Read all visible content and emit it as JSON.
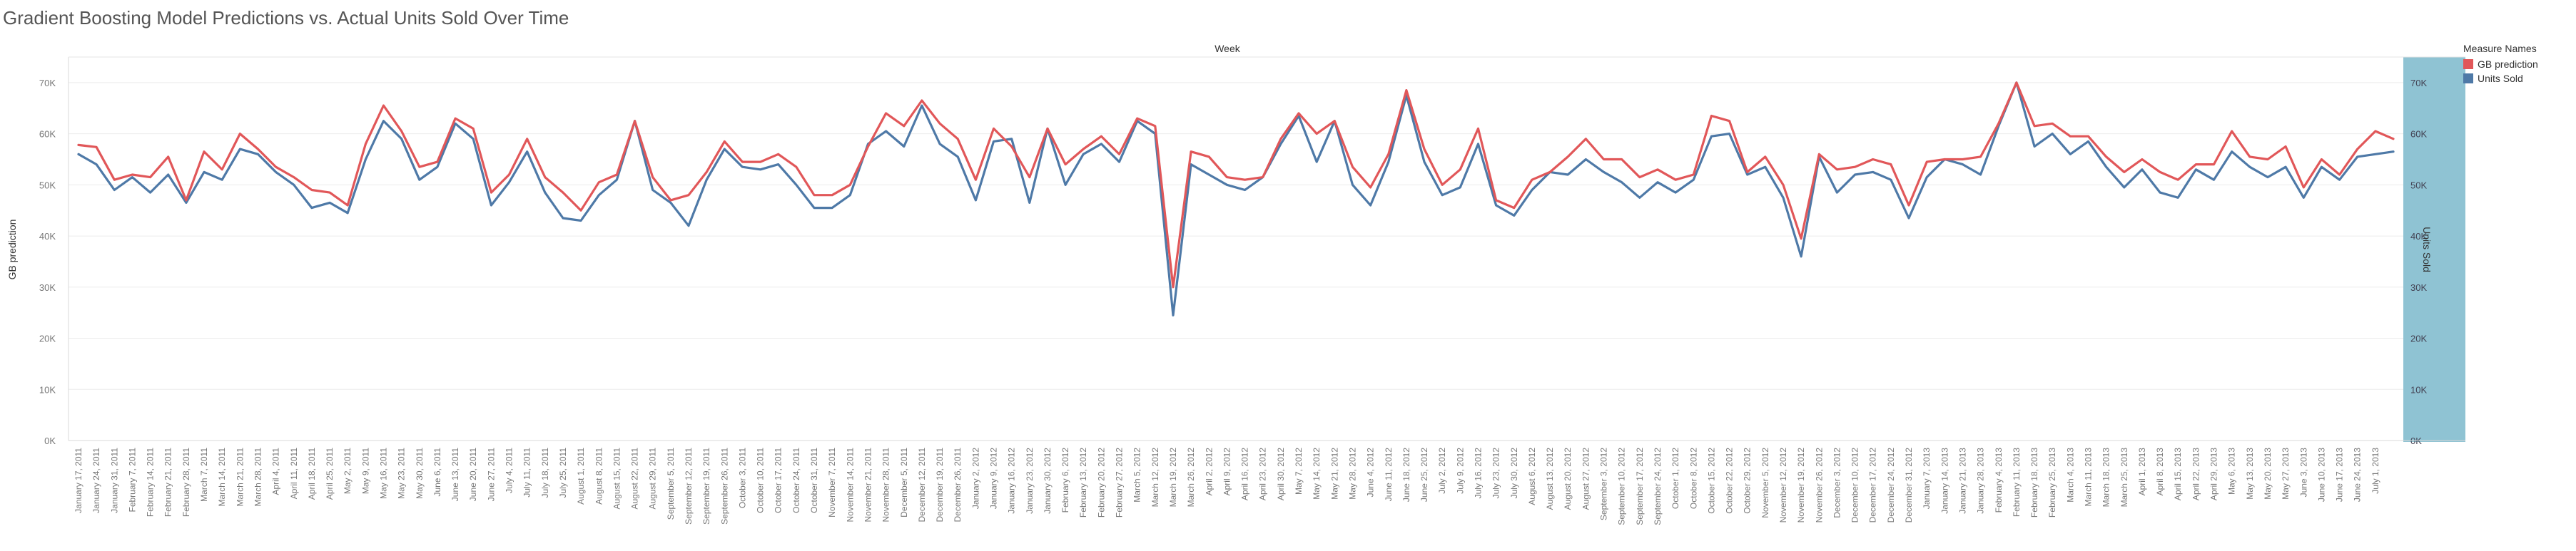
{
  "title": "Gradient Boosting Model Predictions vs. Actual Units Sold Over Time",
  "colors": {
    "prediction": "#e15759",
    "units": "#4e79a7",
    "right_band": "#8fc3d3",
    "grid": "#ececec",
    "axis_text": "#777777"
  },
  "legend": {
    "title": "Measure Names",
    "items": [
      {
        "label": "GB prediction",
        "color": "#e15759"
      },
      {
        "label": "Units Sold",
        "color": "#4e79a7"
      }
    ]
  },
  "chart_data": {
    "type": "line",
    "title": "Gradient Boosting Model Predictions vs. Actual Units Sold Over Time",
    "xlabel": "Week",
    "ylabel_left": "GB prediction",
    "ylabel_right": "Units Sold",
    "ylim": [
      0,
      75000
    ],
    "yticks": [
      0,
      10000,
      20000,
      30000,
      40000,
      50000,
      60000,
      70000
    ],
    "ytick_labels": [
      "0K",
      "10K",
      "20K",
      "30K",
      "40K",
      "50K",
      "60K",
      "70K"
    ],
    "grid": true,
    "legend_position": "top-right",
    "x_tick_labels": [
      "January 17, 2011",
      "January 24, 2011",
      "January 31, 2011",
      "February 7, 2011",
      "February 14, 2011",
      "February 21, 2011",
      "February 28, 2011",
      "March 7, 2011",
      "March 14, 2011",
      "March 21, 2011",
      "March 28, 2011",
      "April 4, 2011",
      "April 11, 2011",
      "April 18, 2011",
      "April 25, 2011",
      "May 2, 2011",
      "May 9, 2011",
      "May 16, 2011",
      "May 23, 2011",
      "May 30, 2011",
      "June 6, 2011",
      "June 13, 2011",
      "June 20, 2011",
      "June 27, 2011",
      "July 4, 2011",
      "July 11, 2011",
      "July 18, 2011",
      "July 25, 2011",
      "August 1, 2011",
      "August 8, 2011",
      "August 15, 2011",
      "August 22, 2011",
      "August 29, 2011",
      "September 5, 2011",
      "September 12, 2011",
      "September 19, 2011",
      "September 26, 2011",
      "October 3, 2011",
      "October 10, 2011",
      "October 17, 2011",
      "October 24, 2011",
      "October 31, 2011",
      "November 7, 2011",
      "November 14, 2011",
      "November 21, 2011",
      "November 28, 2011",
      "December 5, 2011",
      "December 12, 2011",
      "December 19, 2011",
      "December 26, 2011",
      "January 2, 2012",
      "January 9, 2012",
      "January 16, 2012",
      "January 23, 2012",
      "January 30, 2012",
      "February 6, 2012",
      "February 13, 2012",
      "February 20, 2012",
      "February 27, 2012",
      "March 5, 2012",
      "March 12, 2012",
      "March 19, 2012",
      "March 26, 2012",
      "April 2, 2012",
      "April 9, 2012",
      "April 16, 2012",
      "April 23, 2012",
      "April 30, 2012",
      "May 7, 2012",
      "May 14, 2012",
      "May 21, 2012",
      "May 28, 2012",
      "June 4, 2012",
      "June 11, 2012",
      "June 18, 2012",
      "June 25, 2012",
      "July 2, 2012",
      "July 9, 2012",
      "July 16, 2012",
      "July 23, 2012",
      "July 30, 2012",
      "August 6, 2012",
      "August 13, 2012",
      "August 20, 2012",
      "August 27, 2012",
      "September 3, 2012",
      "September 10, 2012",
      "September 17, 2012",
      "September 24, 2012",
      "October 1, 2012",
      "October 8, 2012",
      "October 15, 2012",
      "October 22, 2012",
      "October 29, 2012",
      "November 5, 2012",
      "November 12, 2012",
      "November 19, 2012",
      "November 26, 2012",
      "December 3, 2012",
      "December 10, 2012",
      "December 17, 2012",
      "December 24, 2012",
      "December 31, 2012",
      "January 7, 2013",
      "January 14, 2013",
      "January 21, 2013",
      "January 28, 2013",
      "February 4, 2013",
      "February 11, 2013",
      "February 18, 2013",
      "February 25, 2013",
      "March 4, 2013",
      "March 11, 2013",
      "March 18, 2013",
      "March 25, 2013",
      "April 1, 2013",
      "April 8, 2013",
      "April 15, 2013",
      "April 22, 2013",
      "April 29, 2013",
      "May 6, 2013",
      "May 13, 2013",
      "May 20, 2013",
      "May 27, 2013",
      "June 3, 2013",
      "June 10, 2013",
      "June 17, 2013",
      "June 24, 2013",
      "July 1, 2013"
    ],
    "series": [
      {
        "name": "GB prediction",
        "values": [
          57800,
          57400,
          51000,
          52000,
          51500,
          55500,
          47000,
          56500,
          53000,
          60000,
          57000,
          53500,
          51500,
          49000,
          48500,
          46000,
          58000,
          65500,
          60500,
          53500,
          54500,
          63000,
          61000,
          48500,
          52000,
          59000,
          51500,
          48500,
          45000,
          50500,
          52000,
          62500,
          51500,
          47000,
          48000,
          52500,
          58500,
          54500,
          54500,
          56000,
          53500,
          48000,
          48000,
          50000,
          57500,
          64000,
          61500,
          66500,
          62000,
          59000,
          51000,
          61000,
          57500,
          51500,
          61000,
          54000,
          57000,
          59500,
          56000,
          63000,
          61500,
          30000,
          56500,
          55500,
          51500,
          51000,
          51500,
          59000,
          64000,
          60000,
          62500,
          53500,
          49500,
          56000,
          68500,
          57000,
          50000,
          53000,
          61000,
          47000,
          45500,
          51000,
          52500,
          55500,
          59000,
          55000,
          55000,
          51500,
          53000,
          51000,
          52000,
          63500,
          62500,
          52500,
          55500,
          50000,
          39500,
          56000,
          53000,
          53500,
          55000,
          54000,
          46000,
          54500,
          55000,
          55000,
          55500,
          62000,
          70000,
          61500,
          62000,
          59500,
          59500,
          55500,
          52500,
          55000,
          52500,
          51000,
          54000,
          54000,
          60500,
          55500,
          55000,
          57500,
          49500,
          55000,
          52000,
          57000,
          60500,
          59000
        ]
      },
      {
        "name": "Units Sold",
        "values": [
          56000,
          54000,
          49000,
          51500,
          48500,
          52000,
          46500,
          52500,
          51000,
          57000,
          56000,
          52500,
          50000,
          45500,
          46500,
          44500,
          55000,
          62500,
          59000,
          51000,
          53500,
          62000,
          59000,
          46000,
          50500,
          56500,
          48500,
          43500,
          43000,
          48000,
          51000,
          62500,
          49000,
          46500,
          42000,
          51000,
          57000,
          53500,
          53000,
          54000,
          50000,
          45500,
          45500,
          48000,
          58000,
          60500,
          57500,
          65500,
          58000,
          55500,
          47000,
          58500,
          59000,
          46500,
          61000,
          50000,
          56000,
          58000,
          54500,
          62500,
          60000,
          24500,
          54000,
          52000,
          50000,
          49000,
          51500,
          58000,
          63500,
          54500,
          62500,
          50000,
          46000,
          54500,
          67500,
          54500,
          48000,
          49500,
          58000,
          46000,
          44000,
          49000,
          52500,
          52000,
          55000,
          52500,
          50500,
          47500,
          50500,
          48500,
          51000,
          59500,
          60000,
          52000,
          53500,
          47500,
          36000,
          55500,
          48500,
          52000,
          52500,
          51000,
          43500,
          51500,
          55000,
          54000,
          52000,
          61500,
          70000,
          57500,
          60000,
          56000,
          58500,
          53500,
          49500,
          53000,
          48500,
          47500,
          53000,
          51000,
          56500,
          53500,
          51500,
          53500,
          47500,
          53500,
          51000,
          55500,
          56000,
          56500
        ]
      }
    ]
  }
}
